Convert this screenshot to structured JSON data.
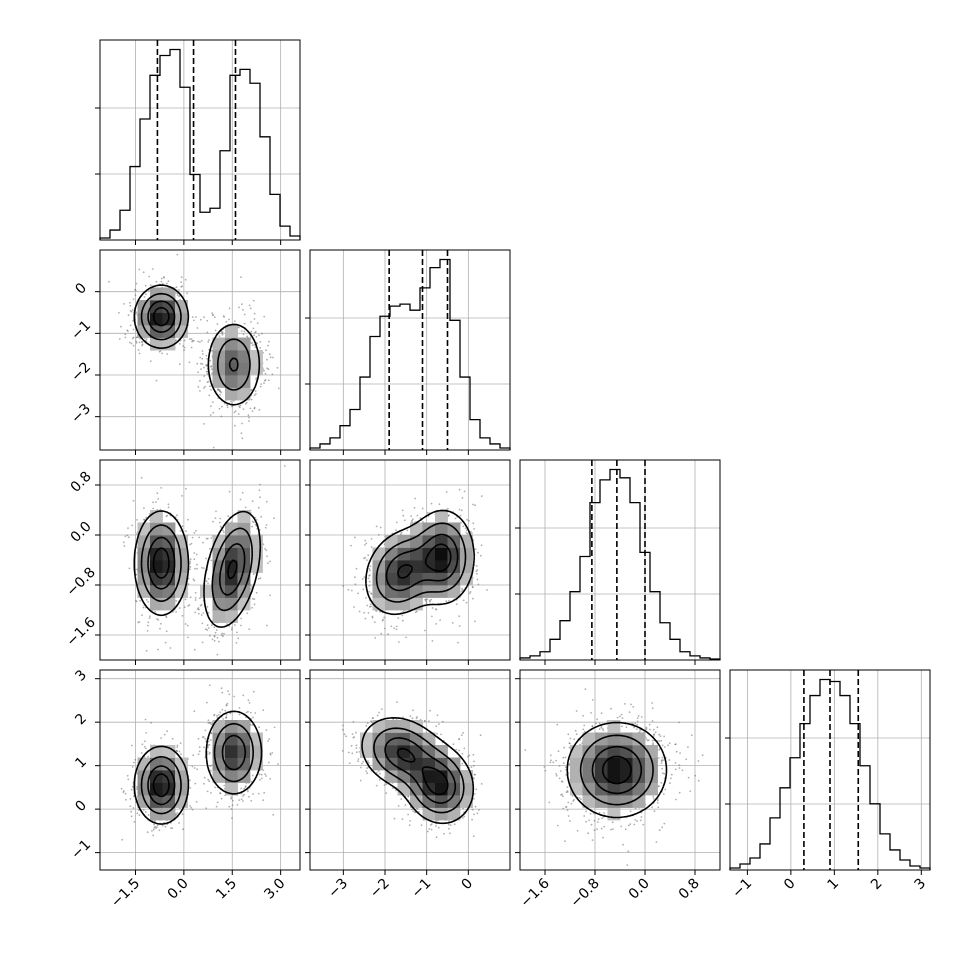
{
  "chart_data": {
    "type": "corner",
    "title": "",
    "grid": true,
    "params": [
      {
        "xlim": [
          -2.6,
          3.6
        ],
        "ticks": [
          -1.5,
          0.0,
          1.5,
          3.0
        ],
        "tick_labels": [
          "−1.5",
          "0.0",
          "1.5",
          "3.0"
        ]
      },
      {
        "xlim": [
          -3.8,
          1.0
        ],
        "ticks": [
          -3,
          -2,
          -1,
          0
        ],
        "tick_labels": [
          "−3",
          "−2",
          "−1",
          "0"
        ]
      },
      {
        "xlim": [
          -2.0,
          1.2
        ],
        "ticks": [
          -1.6,
          -0.8,
          0.0,
          0.8
        ],
        "tick_labels": [
          "−1.6",
          "−0.8",
          "0.0",
          "0.8"
        ]
      },
      {
        "xlim": [
          -1.4,
          3.2
        ],
        "ticks": [
          -1,
          0,
          1,
          2,
          3
        ],
        "tick_labels": [
          "−1",
          "0",
          "1",
          "2",
          "3"
        ]
      }
    ],
    "diagonal_hist": [
      {
        "param": 0,
        "bin_edges": [
          -2.6,
          -2.29,
          -1.98,
          -1.67,
          -1.36,
          -1.05,
          -0.74,
          -0.43,
          -0.12,
          0.19,
          0.5,
          0.81,
          1.12,
          1.43,
          1.74,
          2.05,
          2.36,
          2.67,
          2.98,
          3.29,
          3.6
        ],
        "counts": [
          0.01,
          0.05,
          0.15,
          0.37,
          0.61,
          0.83,
          0.93,
          0.96,
          0.77,
          0.33,
          0.14,
          0.16,
          0.45,
          0.83,
          0.86,
          0.79,
          0.52,
          0.23,
          0.07,
          0.02
        ],
        "quantiles": [
          -0.82,
          0.3,
          1.6
        ]
      },
      {
        "param": 1,
        "bin_edges": [
          -3.8,
          -3.56,
          -3.32,
          -3.08,
          -2.84,
          -2.6,
          -2.36,
          -2.12,
          -1.88,
          -1.64,
          -1.4,
          -1.16,
          -0.92,
          -0.68,
          -0.44,
          -0.2,
          0.04,
          0.28,
          0.52,
          0.76,
          1.0
        ],
        "counts": [
          0.01,
          0.03,
          0.06,
          0.12,
          0.2,
          0.36,
          0.56,
          0.66,
          0.71,
          0.72,
          0.69,
          0.8,
          0.9,
          0.94,
          0.64,
          0.36,
          0.15,
          0.06,
          0.03,
          0.01
        ],
        "quantiles": [
          -1.9,
          -1.1,
          -0.5
        ]
      },
      {
        "param": 2,
        "bin_edges": [
          -2.0,
          -1.84,
          -1.68,
          -1.52,
          -1.36,
          -1.2,
          -1.04,
          -0.88,
          -0.72,
          -0.56,
          -0.4,
          -0.24,
          -0.08,
          0.08,
          0.24,
          0.4,
          0.56,
          0.72,
          0.88,
          1.04,
          1.2
        ],
        "counts": [
          0.01,
          0.02,
          0.04,
          0.1,
          0.19,
          0.33,
          0.5,
          0.76,
          0.87,
          0.92,
          0.88,
          0.76,
          0.52,
          0.33,
          0.18,
          0.1,
          0.04,
          0.02,
          0.01,
          0.005
        ],
        "quantiles": [
          -0.85,
          -0.45,
          0.0
        ]
      },
      {
        "param": 3,
        "bin_edges": [
          -1.4,
          -1.17,
          -0.94,
          -0.71,
          -0.48,
          -0.25,
          -0.02,
          0.21,
          0.44,
          0.67,
          0.9,
          1.13,
          1.36,
          1.59,
          1.82,
          2.05,
          2.28,
          2.51,
          2.74,
          2.97,
          3.2
        ],
        "counts": [
          0.01,
          0.03,
          0.06,
          0.13,
          0.26,
          0.41,
          0.56,
          0.73,
          0.87,
          0.95,
          0.94,
          0.87,
          0.73,
          0.52,
          0.33,
          0.18,
          0.1,
          0.05,
          0.02,
          0.01
        ],
        "quantiles": [
          0.3,
          0.9,
          1.55
        ]
      }
    ],
    "pair_densities": [
      {
        "x_param": 0,
        "y_param": 1,
        "components": [
          {
            "mean": [
              -0.7,
              -0.6
            ],
            "sd": [
              0.42,
              0.38
            ],
            "rho": 0.0,
            "weight": 0.5
          },
          {
            "mean": [
              1.55,
              -1.75
            ],
            "sd": [
              0.45,
              0.55
            ],
            "rho": 0.0,
            "weight": 0.5
          }
        ]
      },
      {
        "x_param": 0,
        "y_param": 2,
        "components": [
          {
            "mean": [
              -0.7,
              -0.45
            ],
            "sd": [
              0.42,
              0.42
            ],
            "rho": 0.0,
            "weight": 0.5
          },
          {
            "mean": [
              1.5,
              -0.55
            ],
            "sd": [
              0.45,
              0.48
            ],
            "rho": 0.4,
            "weight": 0.5
          }
        ]
      },
      {
        "x_param": 1,
        "y_param": 2,
        "components": [
          {
            "mean": [
              -1.6,
              -0.6
            ],
            "sd": [
              0.45,
              0.35
            ],
            "rho": 0.2,
            "weight": 0.5
          },
          {
            "mean": [
              -0.6,
              -0.35
            ],
            "sd": [
              0.38,
              0.38
            ],
            "rho": 0.0,
            "weight": 0.5
          }
        ]
      },
      {
        "x_param": 0,
        "y_param": 3,
        "components": [
          {
            "mean": [
              -0.7,
              0.55
            ],
            "sd": [
              0.42,
              0.45
            ],
            "rho": 0.0,
            "weight": 0.5
          },
          {
            "mean": [
              1.55,
              1.3
            ],
            "sd": [
              0.45,
              0.5
            ],
            "rho": 0.0,
            "weight": 0.5
          }
        ]
      },
      {
        "x_param": 1,
        "y_param": 3,
        "components": [
          {
            "mean": [
              -1.6,
              1.3
            ],
            "sd": [
              0.5,
              0.42
            ],
            "rho": -0.2,
            "weight": 0.5
          },
          {
            "mean": [
              -0.7,
              0.55
            ],
            "sd": [
              0.42,
              0.45
            ],
            "rho": -0.1,
            "weight": 0.5
          }
        ]
      },
      {
        "x_param": 2,
        "y_param": 3,
        "components": [
          {
            "mean": [
              -0.45,
              0.9
            ],
            "sd": [
              0.4,
              0.55
            ],
            "rho": 0.0,
            "weight": 1.0
          }
        ]
      }
    ]
  }
}
